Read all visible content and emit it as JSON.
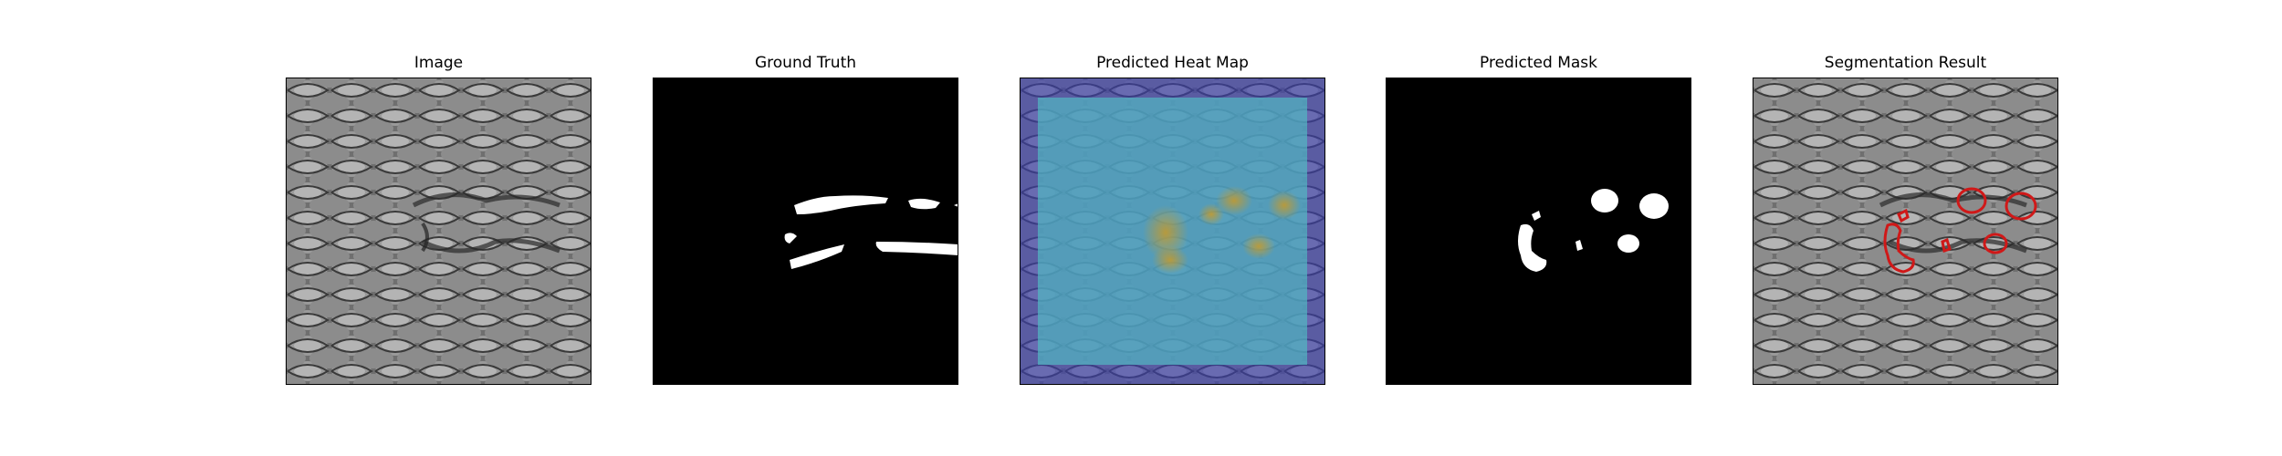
{
  "panels": [
    {
      "title": "Image"
    },
    {
      "title": "Ground Truth"
    },
    {
      "title": "Predicted Heat Map"
    },
    {
      "title": "Predicted Mask"
    },
    {
      "title": "Segmentation Result"
    }
  ],
  "colors": {
    "background": "#ffffff",
    "mask_background": "#000000",
    "mask_foreground": "#ffffff",
    "heat_low": "#3b3fb0",
    "heat_mid": "#4fb0c0",
    "heat_high": "#c8a030",
    "contour": "#d01818"
  }
}
